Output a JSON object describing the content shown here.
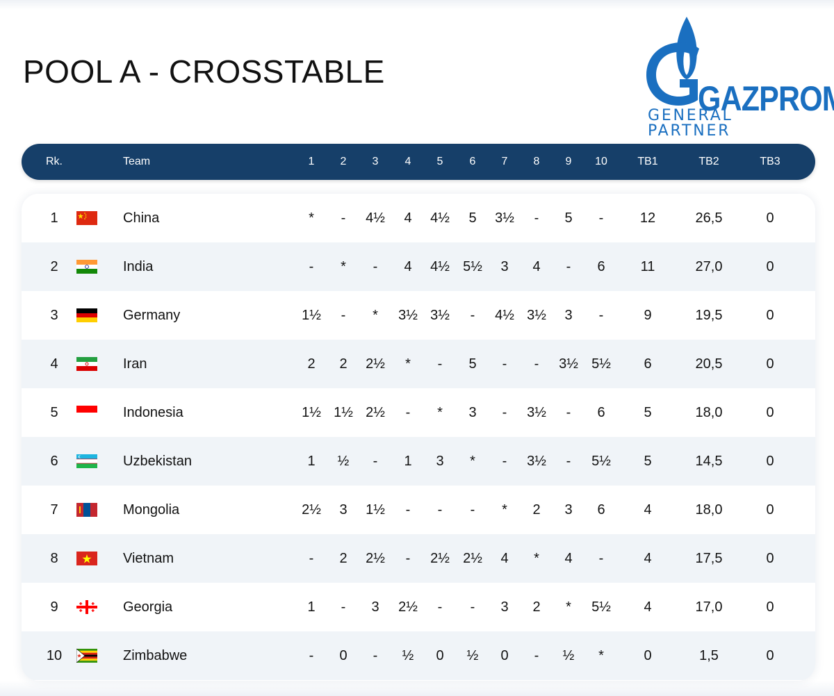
{
  "title": "POOL A - CROSSTABLE",
  "logo": {
    "wordmark": "GAZPROM",
    "subtitle": "GENERAL PARTNER",
    "color": "#1a6fc0"
  },
  "header": {
    "columns": [
      "Rk.",
      "Team",
      "1",
      "2",
      "3",
      "4",
      "5",
      "6",
      "7",
      "8",
      "9",
      "10",
      "TB1",
      "TB2",
      "TB3"
    ]
  },
  "colors": {
    "header_bg": "#163f69",
    "alt_row": "#f0f4f8"
  },
  "rows": [
    {
      "rank": "1",
      "team": "China",
      "flag": "china-flag-icon",
      "results": [
        "*",
        "-",
        "4½",
        "4",
        "4½",
        "5",
        "3½",
        "-",
        "5",
        "-"
      ],
      "tb1": "12",
      "tb2": "26,5",
      "tb3": "0"
    },
    {
      "rank": "2",
      "team": "India",
      "flag": "india-flag-icon",
      "results": [
        "-",
        "*",
        "-",
        "4",
        "4½",
        "5½",
        "3",
        "4",
        "-",
        "6"
      ],
      "tb1": "11",
      "tb2": "27,0",
      "tb3": "0"
    },
    {
      "rank": "3",
      "team": "Germany",
      "flag": "germany-flag-icon",
      "results": [
        "1½",
        "-",
        "*",
        "3½",
        "3½",
        "-",
        "4½",
        "3½",
        "3",
        "-"
      ],
      "tb1": "9",
      "tb2": "19,5",
      "tb3": "0"
    },
    {
      "rank": "4",
      "team": "Iran",
      "flag": "iran-flag-icon",
      "results": [
        "2",
        "2",
        "2½",
        "*",
        "-",
        "5",
        "-",
        "-",
        "3½",
        "5½"
      ],
      "tb1": "6",
      "tb2": "20,5",
      "tb3": "0"
    },
    {
      "rank": "5",
      "team": "Indonesia",
      "flag": "indonesia-flag-icon",
      "results": [
        "1½",
        "1½",
        "2½",
        "-",
        "*",
        "3",
        "-",
        "3½",
        "-",
        "6"
      ],
      "tb1": "5",
      "tb2": "18,0",
      "tb3": "0"
    },
    {
      "rank": "6",
      "team": "Uzbekistan",
      "flag": "uzbekistan-flag-icon",
      "results": [
        "1",
        "½",
        "-",
        "1",
        "3",
        "*",
        "-",
        "3½",
        "-",
        "5½"
      ],
      "tb1": "5",
      "tb2": "14,5",
      "tb3": "0"
    },
    {
      "rank": "7",
      "team": "Mongolia",
      "flag": "mongolia-flag-icon",
      "results": [
        "2½",
        "3",
        "1½",
        "-",
        "-",
        "-",
        "*",
        "2",
        "3",
        "6"
      ],
      "tb1": "4",
      "tb2": "18,0",
      "tb3": "0"
    },
    {
      "rank": "8",
      "team": "Vietnam",
      "flag": "vietnam-flag-icon",
      "results": [
        "-",
        "2",
        "2½",
        "-",
        "2½",
        "2½",
        "4",
        "*",
        "4",
        "-"
      ],
      "tb1": "4",
      "tb2": "17,5",
      "tb3": "0"
    },
    {
      "rank": "9",
      "team": "Georgia",
      "flag": "georgia-flag-icon",
      "results": [
        "1",
        "-",
        "3",
        "2½",
        "-",
        "-",
        "3",
        "2",
        "*",
        "5½"
      ],
      "tb1": "4",
      "tb2": "17,0",
      "tb3": "0"
    },
    {
      "rank": "10",
      "team": "Zimbabwe",
      "flag": "zimbabwe-flag-icon",
      "results": [
        "-",
        "0",
        "-",
        "½",
        "0",
        "½",
        "0",
        "-",
        "½",
        "*"
      ],
      "tb1": "0",
      "tb2": "1,5",
      "tb3": "0"
    }
  ]
}
